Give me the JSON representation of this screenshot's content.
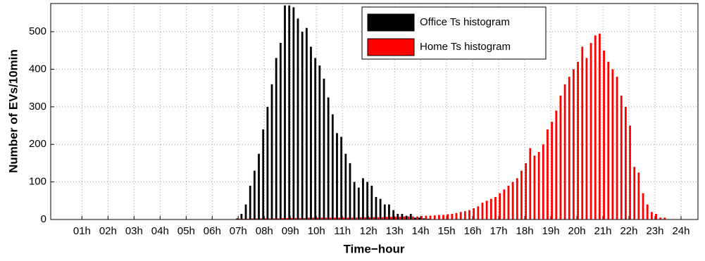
{
  "chart_data": {
    "type": "bar",
    "xlabel": "Time−hour",
    "ylabel": "Number of EVs/10min",
    "x": [
      7,
      7.167,
      7.333,
      7.5,
      7.667,
      7.833,
      8,
      8.167,
      8.333,
      8.5,
      8.667,
      8.833,
      9,
      9.167,
      9.333,
      9.5,
      9.667,
      9.833,
      10,
      10.167,
      10.333,
      10.5,
      10.667,
      10.833,
      11,
      11.167,
      11.333,
      11.5,
      11.667,
      11.833,
      12,
      12.167,
      12.333,
      12.5,
      12.667,
      12.833,
      13,
      13.167,
      13.333,
      13.5,
      13.667,
      13.833,
      14,
      14.167,
      14.333,
      14.5,
      14.667,
      14.833,
      15,
      15.167,
      15.333,
      15.5,
      15.667,
      15.833,
      16,
      16.167,
      16.333,
      16.5,
      16.667,
      16.833,
      17,
      17.167,
      17.333,
      17.5,
      17.667,
      17.833,
      18,
      18.167,
      18.333,
      18.5,
      18.667,
      18.833,
      19,
      19.167,
      19.333,
      19.5,
      19.667,
      19.833,
      20,
      20.167,
      20.333,
      20.5,
      20.667,
      20.833,
      21,
      21.167,
      21.333,
      21.5,
      21.667,
      21.833,
      22,
      22.167,
      22.333,
      22.5,
      22.667,
      22.833,
      23,
      23.167,
      23.333,
      23.5,
      23.667,
      23.833
    ],
    "series": [
      {
        "name": "Office Ts histogram",
        "color": "#000000",
        "values": [
          3,
          15,
          40,
          90,
          130,
          175,
          240,
          300,
          360,
          430,
          470,
          570,
          570,
          565,
          535,
          500,
          510,
          460,
          430,
          410,
          375,
          325,
          280,
          230,
          220,
          175,
          150,
          100,
          85,
          110,
          100,
          90,
          60,
          55,
          40,
          40,
          25,
          15,
          15,
          10,
          15,
          5,
          5,
          3,
          2,
          0,
          0,
          0,
          0,
          0,
          0,
          0,
          0,
          0,
          0,
          0,
          0,
          0,
          0,
          0,
          0,
          0,
          0,
          0,
          0,
          0,
          0,
          0,
          0,
          0,
          0,
          0,
          0,
          0,
          0,
          0,
          0,
          0,
          0,
          0,
          0,
          0,
          0,
          0,
          0,
          0,
          0,
          0,
          0,
          0,
          0,
          0,
          0,
          0,
          0,
          0,
          0,
          0,
          0,
          0,
          0,
          0
        ]
      },
      {
        "name": "Home Ts histogram",
        "color": "#ff0000",
        "values": [
          2,
          2,
          2,
          3,
          3,
          3,
          3,
          3,
          3,
          3,
          4,
          4,
          4,
          4,
          4,
          4,
          5,
          5,
          5,
          5,
          5,
          5,
          5,
          5,
          5,
          5,
          5,
          5,
          6,
          6,
          6,
          6,
          6,
          6,
          7,
          7,
          7,
          7,
          8,
          8,
          8,
          8,
          9,
          10,
          10,
          11,
          12,
          12,
          14,
          15,
          17,
          20,
          22,
          25,
          30,
          35,
          45,
          50,
          55,
          60,
          70,
          80,
          90,
          100,
          110,
          130,
          150,
          190,
          170,
          180,
          200,
          240,
          260,
          290,
          330,
          360,
          380,
          400,
          420,
          460,
          430,
          470,
          490,
          495,
          450,
          420,
          400,
          380,
          330,
          300,
          250,
          140,
          125,
          70,
          40,
          20,
          15,
          5,
          5,
          0,
          0,
          0
        ]
      }
    ],
    "xlim": [
      -0.2,
      24.65
    ],
    "ylim": [
      0,
      575
    ],
    "xticks": [
      {
        "value": 1,
        "label": "01h"
      },
      {
        "value": 2,
        "label": "02h"
      },
      {
        "value": 3,
        "label": "03h"
      },
      {
        "value": 4,
        "label": "04h"
      },
      {
        "value": 5,
        "label": "05h"
      },
      {
        "value": 6,
        "label": "06h"
      },
      {
        "value": 7,
        "label": "07h"
      },
      {
        "value": 8,
        "label": "08h"
      },
      {
        "value": 9,
        "label": "09h"
      },
      {
        "value": 10,
        "label": "10h"
      },
      {
        "value": 11,
        "label": "11h"
      },
      {
        "value": 12,
        "label": "12h"
      },
      {
        "value": 13,
        "label": "13h"
      },
      {
        "value": 14,
        "label": "14h"
      },
      {
        "value": 15,
        "label": "15h"
      },
      {
        "value": 16,
        "label": "16h"
      },
      {
        "value": 17,
        "label": "17h"
      },
      {
        "value": 18,
        "label": "18h"
      },
      {
        "value": 19,
        "label": "19h"
      },
      {
        "value": 20,
        "label": "20h"
      },
      {
        "value": 21,
        "label": "21h"
      },
      {
        "value": 22,
        "label": "22h"
      },
      {
        "value": 23,
        "label": "23h"
      },
      {
        "value": 24,
        "label": "24h"
      }
    ],
    "yticks": [
      0,
      100,
      200,
      300,
      400,
      500
    ],
    "grid": true,
    "legend": "upper right"
  }
}
